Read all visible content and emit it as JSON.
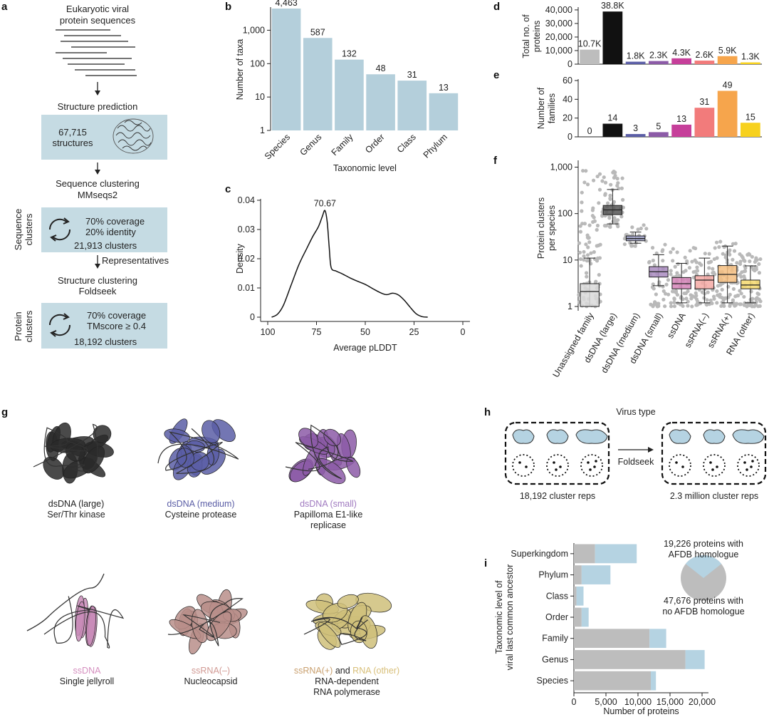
{
  "colors": {
    "box": "#c5dbe3",
    "bar_b": "#b4cfdb",
    "gray": "#bdbdbd",
    "black": "#111111",
    "medium": "#5b5ea6",
    "small": "#8c5ba7",
    "ssdna": "#c63f9a",
    "ssrna_minus": "#f27b7b",
    "ssrna_plus": "#f6a54c",
    "rna_other": "#f7d11e",
    "i_gray": "#bdbdbd",
    "i_blue": "#b5d3e2"
  },
  "panel_labels": {
    "a": "a",
    "b": "b",
    "c": "c",
    "d": "d",
    "e": "e",
    "f": "f",
    "g": "g",
    "h": "h",
    "i": "i"
  },
  "panel_a": {
    "title_line1": "Eukaryotic viral",
    "title_line2": "protein sequences",
    "step1": "Structure prediction",
    "box1_line1": "67,715",
    "box1_line2": "structures",
    "step2_line1": "Sequence clustering",
    "step2_line2": "MMseqs2",
    "side1_line1": "Sequence",
    "side1_line2": "clusters",
    "box2_line1": "70% coverage",
    "box2_line2": "20% identity",
    "box2_line3": "21,913 clusters",
    "representatives": "Representatives",
    "step3_line1": "Structure clustering",
    "step3_line2": "Foldseek",
    "side2_line1": "Protein",
    "side2_line2": "clusters",
    "box3_line1": "70% coverage",
    "box3_line2": "TMscore ≥ 0.4",
    "box3_line3": "18,192 clusters"
  },
  "panel_g": {
    "items": [
      {
        "line1": "dsDNA (large)",
        "line2": "Ser/Thr kinase",
        "line3": "",
        "accent": "#222222",
        "fill": "#2a2a2a"
      },
      {
        "line1": "dsDNA (medium)",
        "line2": "Cysteine protease",
        "line3": "",
        "accent": "#5b5ea6",
        "fill": "#5b5ea6"
      },
      {
        "line1": "dsDNA (small)",
        "line2": "Papilloma E1-like",
        "line3": "replicase",
        "accent": "#a07ac0",
        "fill": "#8c5ba7"
      },
      {
        "line1": "ssDNA",
        "line2": "Single jellyroll",
        "line3": "",
        "accent": "#d58fbf",
        "fill": "#c98cb8"
      },
      {
        "line1": "ssRNA(–)",
        "line2": "Nucleocapsid",
        "line3": "",
        "accent": "#d19a94",
        "fill": "#b98e8a"
      }
    ],
    "last": {
      "part1": "ssRNA(+)",
      "part2": " and ",
      "part3": "RNA (other)",
      "line2": "RNA-dependent",
      "line3": "RNA polymerase",
      "accent1": "#c9a06f",
      "accent3": "#d8bf79"
    }
  },
  "panel_h": {
    "title": "Virus type",
    "left_caption": "18,192 cluster reps",
    "arrow_label": "Foldseek",
    "right_caption": "2.3 million cluster reps"
  },
  "chart_data": [
    {
      "panel": "b",
      "type": "bar",
      "ylabel": "Number of taxa",
      "xlabel": "Taxonomic level",
      "yscale": "log",
      "ylim": [
        1,
        4463
      ],
      "yticks": [
        "1",
        "10",
        "100",
        "1,000"
      ],
      "categories": [
        "Species",
        "Genus",
        "Family",
        "Order",
        "Class",
        "Phylum"
      ],
      "values": [
        4463,
        587,
        132,
        48,
        31,
        13
      ],
      "labels": [
        "4,463",
        "587",
        "132",
        "48",
        "31",
        "13"
      ]
    },
    {
      "panel": "c",
      "type": "line",
      "ylabel": "Density",
      "xlabel": "Average pLDDT",
      "xlim": [
        100,
        0
      ],
      "ylim": [
        0,
        0.04
      ],
      "xticks": [
        "100",
        "75",
        "50",
        "25",
        "0"
      ],
      "yticks": [
        "0",
        "0.01",
        "0.02",
        "0.03",
        "0.04"
      ],
      "peak_label": "70.67",
      "x": [
        98,
        95,
        92,
        88,
        84,
        80,
        77,
        74,
        72,
        70.67,
        69.5,
        68.5,
        67.5,
        65,
        62,
        58,
        54,
        50,
        46,
        42,
        39,
        36,
        33,
        30,
        27,
        24,
        21,
        18
      ],
      "y": [
        0,
        0.001,
        0.004,
        0.011,
        0.018,
        0.0235,
        0.0275,
        0.031,
        0.0345,
        0.0365,
        0.0325,
        0.024,
        0.017,
        0.0158,
        0.0149,
        0.0135,
        0.0123,
        0.0112,
        0.0097,
        0.0083,
        0.0077,
        0.0082,
        0.0076,
        0.0058,
        0.0034,
        0.0012,
        0.0002,
        0
      ]
    },
    {
      "panel": "d",
      "type": "bar",
      "ylabel": "Total no. of proteins",
      "ylim": [
        0,
        40000
      ],
      "yticks": [
        "0",
        "10,000",
        "20,000",
        "30,000",
        "40,000"
      ],
      "categories": [
        "Unassigned family",
        "dsDNA (large)",
        "dsDNA (medium)",
        "dsDNA (small)",
        "ssDNA",
        "ssRNA(–)",
        "ssRNA(+)",
        "RNA (other)"
      ],
      "values": [
        10700,
        38800,
        1800,
        2300,
        4300,
        2600,
        5900,
        1300
      ],
      "labels": [
        "10.7K",
        "38.8K",
        "1.8K",
        "2.3K",
        "4.3K",
        "2.6K",
        "5.9K",
        "1.3K"
      ]
    },
    {
      "panel": "e",
      "type": "bar",
      "ylabel": "Number of families",
      "ylim": [
        0,
        60
      ],
      "yticks": [
        "0",
        "20",
        "40",
        "60"
      ],
      "categories": [
        "Unassigned family",
        "dsDNA (large)",
        "dsDNA (medium)",
        "dsDNA (small)",
        "ssDNA",
        "ssRNA(–)",
        "ssRNA(+)",
        "RNA (other)"
      ],
      "values": [
        0,
        14,
        3,
        5,
        13,
        31,
        49,
        15
      ],
      "labels": [
        "0",
        "14",
        "3",
        "5",
        "13",
        "31",
        "49",
        "15"
      ]
    },
    {
      "panel": "f",
      "type": "box",
      "ylabel": "Protein clusters per species",
      "yscale": "log",
      "ylim": [
        1,
        1400
      ],
      "yticks": [
        "1",
        "10",
        "100",
        "1,000"
      ],
      "categories": [
        "Unassigned family",
        "dsDNA (large)",
        "dsDNA (medium)",
        "dsDNA (small)",
        "ssDNA",
        "ssRNA(–)",
        "ssRNA(+)",
        "RNA (other)"
      ],
      "boxes": [
        {
          "q1": 1,
          "median": 2.1,
          "q3": 3.1,
          "whisker_low": 1,
          "whisker_high": 11
        },
        {
          "q1": 95,
          "median": 120,
          "q3": 150,
          "whisker_low": 60,
          "whisker_high": 330
        },
        {
          "q1": 26,
          "median": 29,
          "q3": 33,
          "whisker_low": 23,
          "whisker_high": 40
        },
        {
          "q1": 4.3,
          "median": 5.6,
          "q3": 7.2,
          "whisker_low": 2.8,
          "whisker_high": 13
        },
        {
          "q1": 2.4,
          "median": 3.1,
          "q3": 4.2,
          "whisker_low": 1.2,
          "whisker_high": 8.5
        },
        {
          "q1": 2.4,
          "median": 3.7,
          "q3": 4.6,
          "whisker_low": 1.2,
          "whisker_high": 11
        },
        {
          "q1": 3.3,
          "median": 4.9,
          "q3": 7.6,
          "whisker_low": 1.2,
          "whisker_high": 20
        },
        {
          "q1": 2.4,
          "median": 2.9,
          "q3": 3.7,
          "whisker_low": 1.2,
          "whisker_high": 7.5
        }
      ]
    },
    {
      "panel": "i",
      "type": "bar",
      "orientation": "horizontal",
      "stacked": true,
      "ylabel": "Taxonomic level of viral last common ancestor",
      "xlabel": "Number of proteins",
      "xlim": [
        0,
        20000
      ],
      "xticks": [
        "0",
        "5,000",
        "10,000",
        "15,000",
        "20,000"
      ],
      "categories": [
        "Superkingdom",
        "Phylum",
        "Class",
        "Order",
        "Family",
        "Genus",
        "Species"
      ],
      "series": [
        {
          "values": [
            3300,
            1200,
            400,
            1200,
            11800,
            17400,
            12000
          ]
        },
        {
          "values": [
            6500,
            4500,
            1100,
            1100,
            2600,
            3000,
            800
          ]
        }
      ],
      "pie": {
        "values": [
          19226,
          47676
        ],
        "label_top_line1": "19,226 proteins with",
        "label_top_line2": "AFDB homologue",
        "label_bottom_line1": "47,676 proteins with",
        "label_bottom_line2": "no AFDB homologue"
      }
    }
  ]
}
